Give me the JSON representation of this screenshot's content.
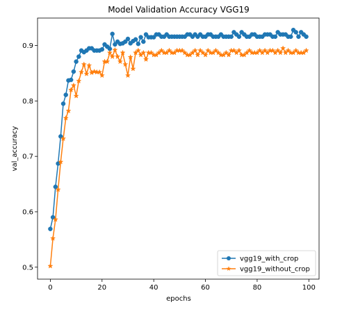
{
  "chart_data": {
    "type": "line",
    "title": "Model Validation Accuracy VGG19",
    "xlabel": "epochs",
    "ylabel": "val_accuracy",
    "xlim": [
      -4.95,
      103.95
    ],
    "ylim": [
      0.4784,
      0.9496
    ],
    "x_ticks": [
      0,
      20,
      40,
      60,
      80,
      100
    ],
    "x_tick_labels": [
      "0",
      "20",
      "40",
      "60",
      "80",
      "100"
    ],
    "y_ticks": [
      0.5,
      0.6,
      0.7,
      0.8,
      0.9
    ],
    "y_tick_labels": [
      "0.5",
      "0.6",
      "0.7",
      "0.8",
      "0.9"
    ],
    "grid": false,
    "legend_position": "lower-right",
    "x": [
      0,
      1,
      2,
      3,
      4,
      5,
      6,
      7,
      8,
      9,
      10,
      11,
      12,
      13,
      14,
      15,
      16,
      17,
      18,
      19,
      20,
      21,
      22,
      23,
      24,
      25,
      26,
      27,
      28,
      29,
      30,
      31,
      32,
      33,
      34,
      35,
      36,
      37,
      38,
      39,
      40,
      41,
      42,
      43,
      44,
      45,
      46,
      47,
      48,
      49,
      50,
      51,
      52,
      53,
      54,
      55,
      56,
      57,
      58,
      59,
      60,
      61,
      62,
      63,
      64,
      65,
      66,
      67,
      68,
      69,
      70,
      71,
      72,
      73,
      74,
      75,
      76,
      77,
      78,
      79,
      80,
      81,
      82,
      83,
      84,
      85,
      86,
      87,
      88,
      89,
      90,
      91,
      92,
      93,
      94,
      95,
      96,
      97,
      98,
      99
    ],
    "series": [
      {
        "name": "vgg19_with_crop",
        "color": "#1f77b4",
        "marker": "circle",
        "values": [
          0.569,
          0.59,
          0.645,
          0.687,
          0.736,
          0.795,
          0.811,
          0.837,
          0.838,
          0.853,
          0.871,
          0.88,
          0.891,
          0.888,
          0.891,
          0.895,
          0.895,
          0.891,
          0.891,
          0.891,
          0.893,
          0.902,
          0.898,
          0.894,
          0.921,
          0.902,
          0.907,
          0.903,
          0.904,
          0.907,
          0.912,
          0.904,
          0.908,
          0.911,
          0.903,
          0.915,
          0.907,
          0.92,
          0.915,
          0.915,
          0.915,
          0.92,
          0.92,
          0.916,
          0.916,
          0.92,
          0.916,
          0.916,
          0.916,
          0.916,
          0.916,
          0.916,
          0.916,
          0.92,
          0.92,
          0.916,
          0.92,
          0.916,
          0.92,
          0.916,
          0.916,
          0.92,
          0.92,
          0.916,
          0.916,
          0.916,
          0.92,
          0.916,
          0.916,
          0.916,
          0.916,
          0.924,
          0.92,
          0.916,
          0.924,
          0.92,
          0.916,
          0.916,
          0.92,
          0.92,
          0.916,
          0.916,
          0.916,
          0.92,
          0.92,
          0.92,
          0.916,
          0.916,
          0.924,
          0.92,
          0.92,
          0.92,
          0.916,
          0.916,
          0.928,
          0.924,
          0.916,
          0.924,
          0.92,
          0.916
        ]
      },
      {
        "name": "vgg19_without_crop",
        "color": "#ff7f0e",
        "marker": "star",
        "values": [
          0.502,
          0.552,
          0.586,
          0.64,
          0.69,
          0.732,
          0.769,
          0.782,
          0.82,
          0.828,
          0.809,
          0.836,
          0.852,
          0.866,
          0.849,
          0.864,
          0.851,
          0.853,
          0.852,
          0.852,
          0.846,
          0.871,
          0.871,
          0.887,
          0.88,
          0.892,
          0.88,
          0.871,
          0.887,
          0.866,
          0.846,
          0.879,
          0.858,
          0.887,
          0.891,
          0.883,
          0.887,
          0.875,
          0.887,
          0.887,
          0.883,
          0.883,
          0.887,
          0.891,
          0.887,
          0.887,
          0.891,
          0.887,
          0.887,
          0.891,
          0.891,
          0.891,
          0.887,
          0.883,
          0.883,
          0.887,
          0.891,
          0.883,
          0.891,
          0.887,
          0.883,
          0.891,
          0.887,
          0.887,
          0.891,
          0.887,
          0.883,
          0.883,
          0.887,
          0.883,
          0.891,
          0.891,
          0.887,
          0.891,
          0.883,
          0.883,
          0.887,
          0.891,
          0.887,
          0.887,
          0.887,
          0.891,
          0.887,
          0.891,
          0.887,
          0.891,
          0.891,
          0.887,
          0.891,
          0.887,
          0.895,
          0.887,
          0.891,
          0.887,
          0.887,
          0.891,
          0.887,
          0.887,
          0.887,
          0.891
        ]
      }
    ]
  }
}
